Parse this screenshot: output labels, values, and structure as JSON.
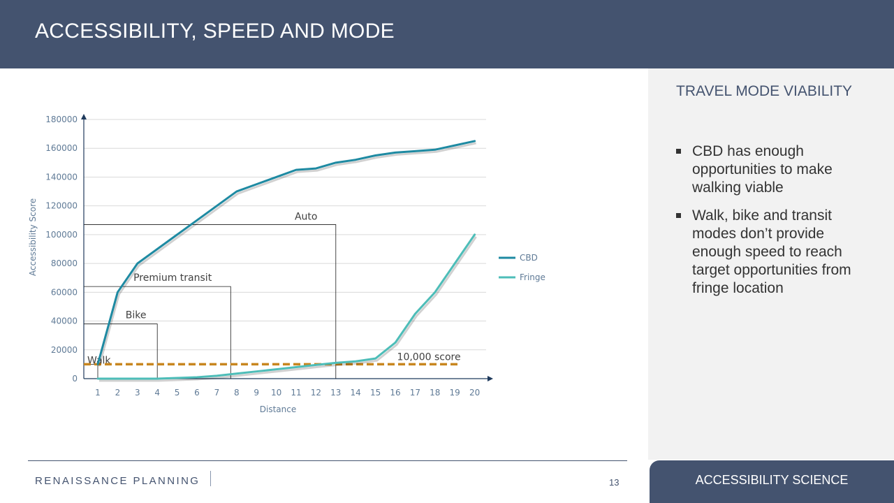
{
  "slide": {
    "title": "ACCESSIBILITY, SPEED AND MODE",
    "panel_heading": "TRAVEL MODE VIABILITY",
    "bullets": [
      "CBD has enough opportunities to make walking viable",
      "Walk, bike and transit modes don’t provide enough speed to reach target opportunities from fringe location"
    ],
    "footer_label": "ACCESSIBILITY SCIENCE",
    "logo_text": "RENAISSANCE PLANNING",
    "page_number": "13"
  },
  "colors": {
    "header": "#44536f",
    "cbd": "#1e8aa2",
    "fringe": "#4dbdb8",
    "threshold": "#c8861f",
    "panel": "#f2f2f2"
  },
  "chart_data": {
    "type": "line",
    "xlabel": "Distance",
    "ylabel": "Accessibility Score",
    "x": [
      1,
      2,
      3,
      4,
      5,
      6,
      7,
      8,
      9,
      10,
      11,
      12,
      13,
      14,
      15,
      16,
      17,
      18,
      19,
      20
    ],
    "ylim": [
      0,
      180000
    ],
    "yticks": [
      0,
      20000,
      40000,
      60000,
      80000,
      100000,
      120000,
      140000,
      160000,
      180000
    ],
    "grid": true,
    "legend_position": "right",
    "series": [
      {
        "name": "CBD",
        "values": [
          10000,
          60000,
          80000,
          90000,
          100000,
          110000,
          120000,
          130000,
          135000,
          140000,
          145000,
          146000,
          150000,
          152000,
          155000,
          157000,
          158000,
          159000,
          162000,
          165000
        ]
      },
      {
        "name": "Fringe",
        "values": [
          0,
          0,
          0,
          0,
          500,
          1000,
          2000,
          3500,
          5000,
          6500,
          8000,
          9500,
          11000,
          12000,
          14000,
          25000,
          45000,
          60000,
          80000,
          100000
        ]
      }
    ],
    "threshold": {
      "label": "10,000 score",
      "value": 10000
    },
    "mode_boxes": [
      {
        "label": "Walk",
        "x": 1,
        "y": 10000
      },
      {
        "label": "Bike",
        "x": 4,
        "y": 38000
      },
      {
        "label": "Premium transit",
        "x": 7.7,
        "y": 64000
      },
      {
        "label": "Auto",
        "x": 13,
        "y": 107000
      }
    ]
  }
}
